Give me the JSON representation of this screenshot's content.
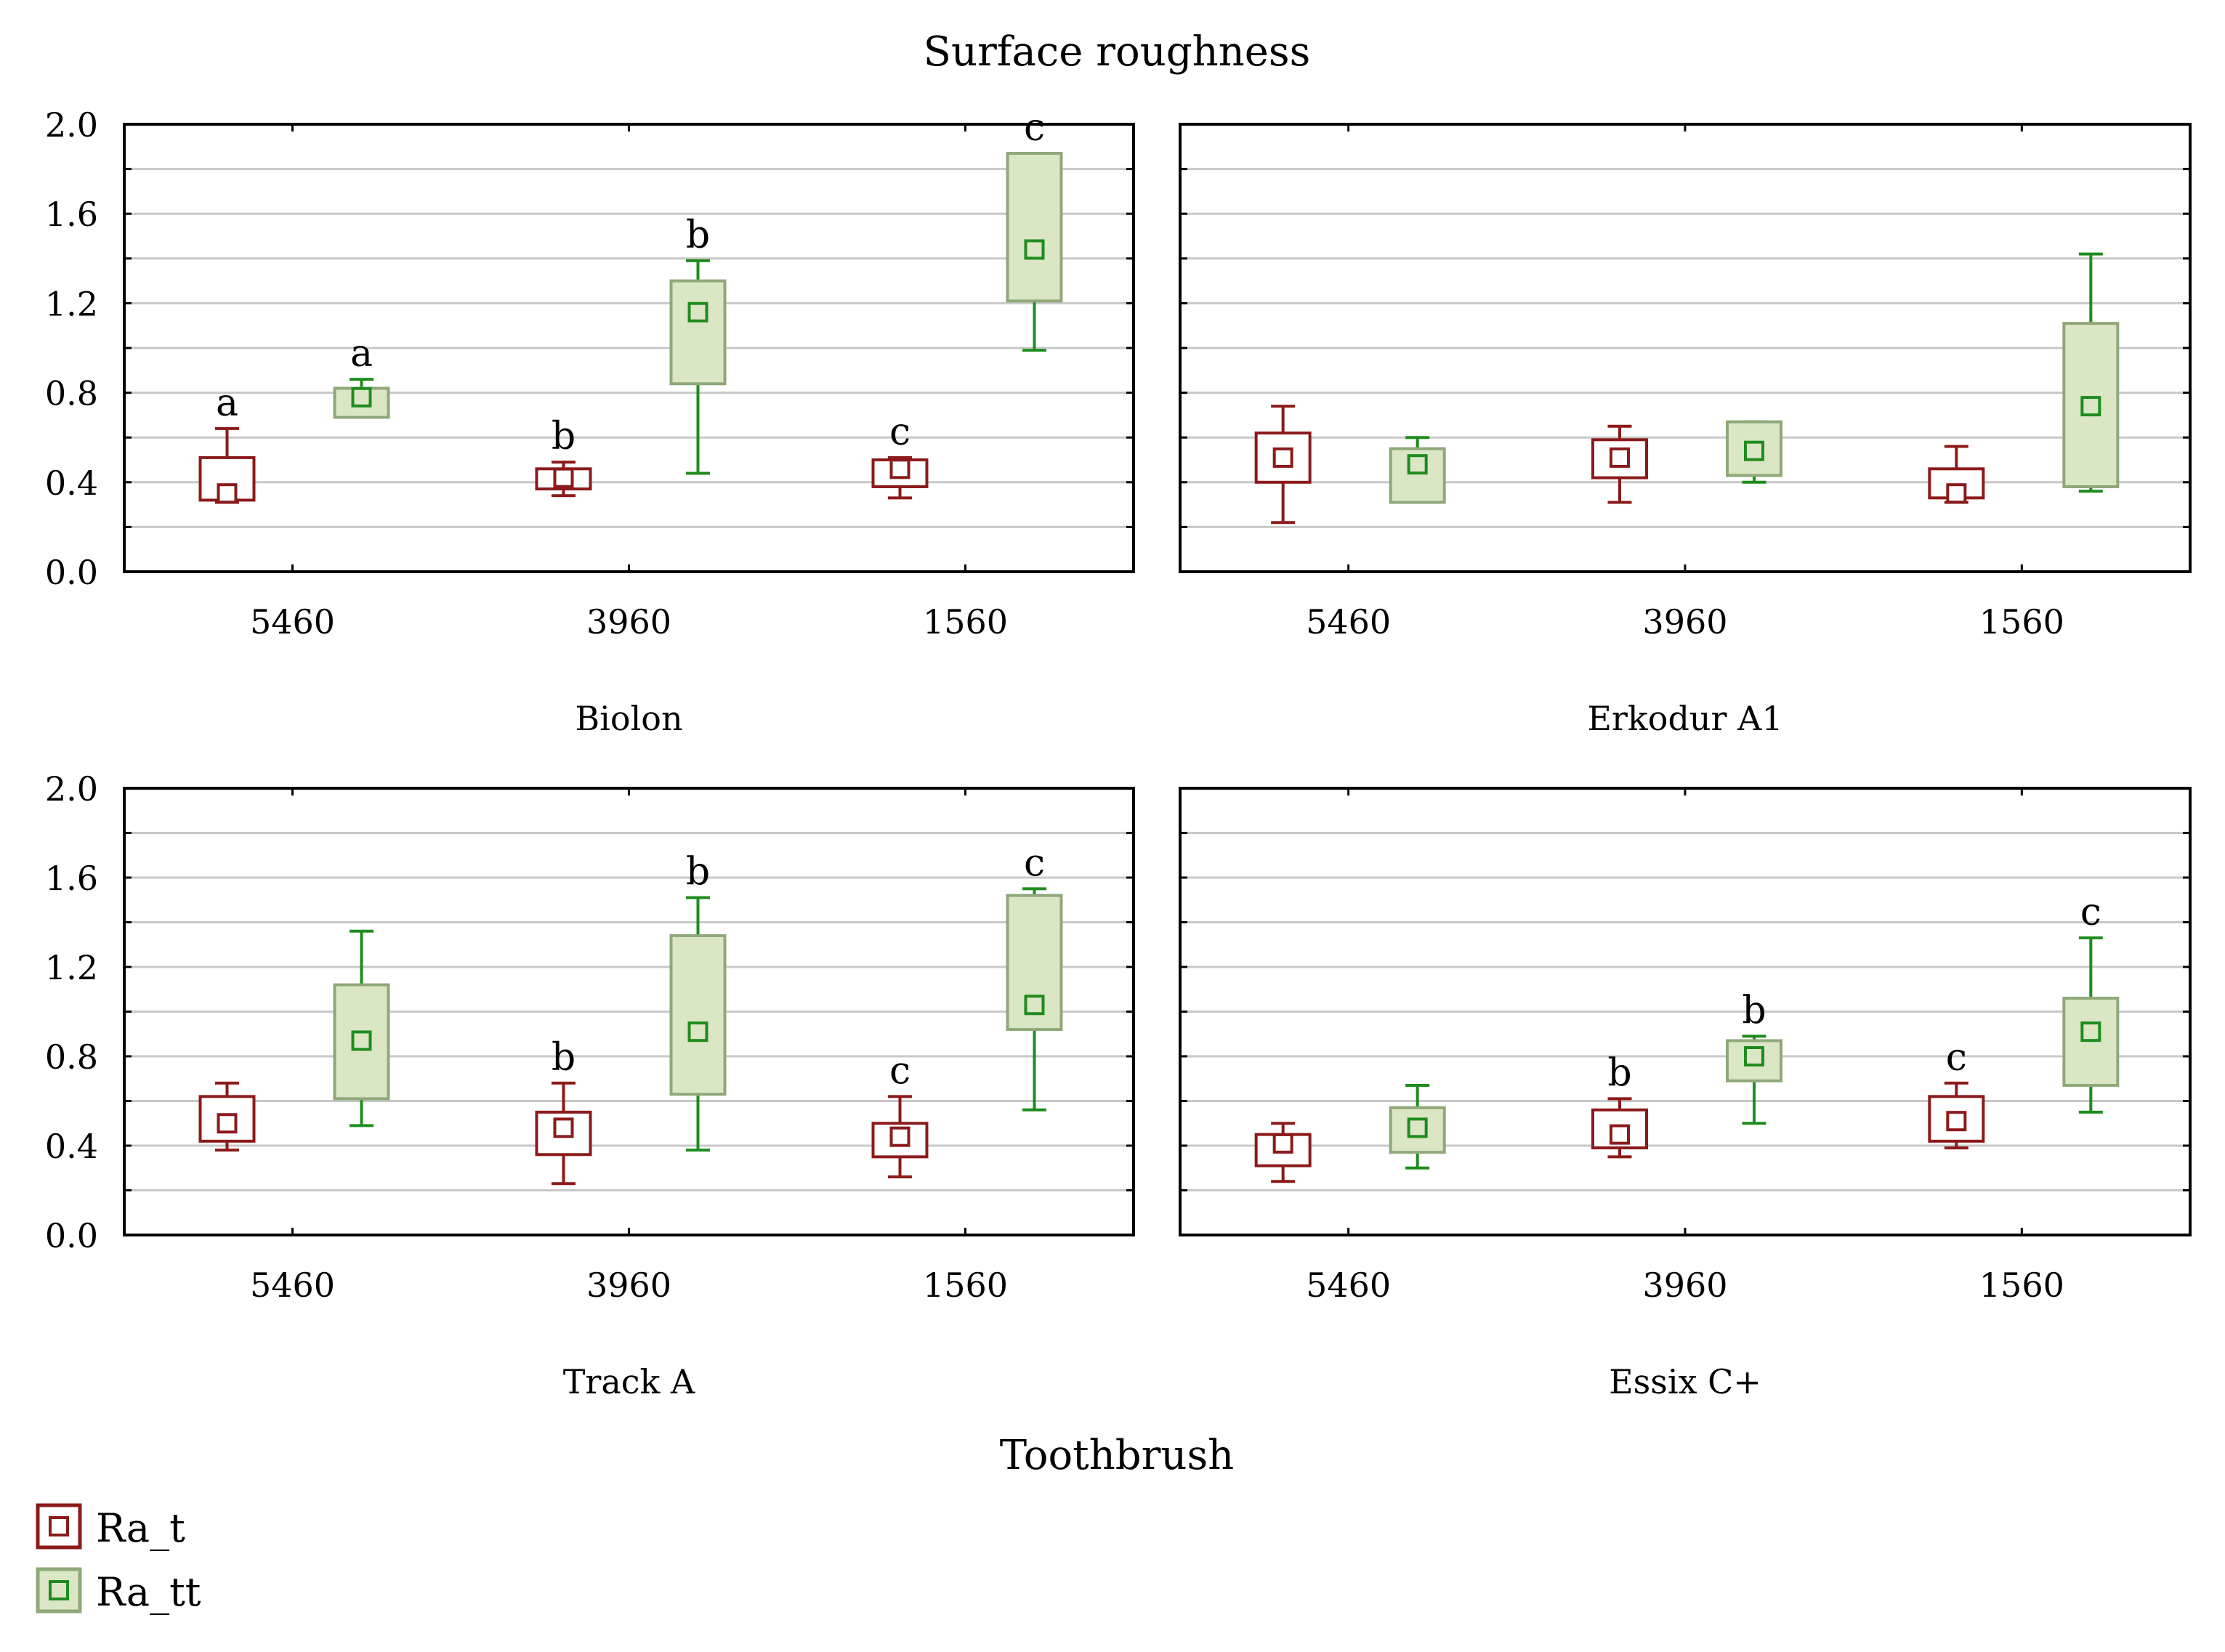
{
  "chart_data": {
    "type": "box",
    "title": "Surface roughness",
    "xlabel": "Toothbrush",
    "ylim": [
      0,
      2.0
    ],
    "yticks": [
      "0.0",
      "0.4",
      "0.8",
      "1.2",
      "1.6",
      "2.0"
    ],
    "categories": [
      "5460",
      "3960",
      "1560"
    ],
    "legend": [
      {
        "name": "Ra_t",
        "key": "t"
      },
      {
        "name": "Ra_tt",
        "key": "tt"
      }
    ],
    "colors": {
      "t_stroke": "#8b1a1a",
      "t_fill": "#ffffff",
      "tt_stroke": "#1e8c1e",
      "tt_box_stroke": "#8fa87a",
      "tt_fill": "#dbe6c4",
      "grid": "#c8c8c8"
    },
    "panels": [
      {
        "title": "Biolon",
        "groups": [
          {
            "category": "5460",
            "t": {
              "min": 0.31,
              "q1": 0.32,
              "median": 0.35,
              "q3": 0.51,
              "max": 0.64,
              "letter": "a"
            },
            "tt": {
              "min": 0.69,
              "q1": 0.69,
              "median": 0.78,
              "q3": 0.82,
              "max": 0.86,
              "letter": "a"
            }
          },
          {
            "category": "3960",
            "t": {
              "min": 0.34,
              "q1": 0.37,
              "median": 0.42,
              "q3": 0.46,
              "max": 0.49,
              "letter": "b"
            },
            "tt": {
              "min": 0.44,
              "q1": 0.84,
              "median": 1.16,
              "q3": 1.3,
              "max": 1.39,
              "letter": "b"
            }
          },
          {
            "category": "1560",
            "t": {
              "min": 0.33,
              "q1": 0.38,
              "median": 0.46,
              "q3": 0.5,
              "max": 0.51,
              "letter": "c"
            },
            "tt": {
              "min": 0.99,
              "q1": 1.21,
              "median": 1.44,
              "q3": 1.87,
              "max": 1.87,
              "letter": "c"
            }
          }
        ]
      },
      {
        "title": "Erkodur A1",
        "groups": [
          {
            "category": "5460",
            "t": {
              "min": 0.22,
              "q1": 0.4,
              "median": 0.51,
              "q3": 0.62,
              "max": 0.74,
              "letter": ""
            },
            "tt": {
              "min": 0.31,
              "q1": 0.31,
              "median": 0.48,
              "q3": 0.55,
              "max": 0.6,
              "letter": ""
            }
          },
          {
            "category": "3960",
            "t": {
              "min": 0.31,
              "q1": 0.42,
              "median": 0.51,
              "q3": 0.59,
              "max": 0.65,
              "letter": ""
            },
            "tt": {
              "min": 0.4,
              "q1": 0.43,
              "median": 0.54,
              "q3": 0.67,
              "max": 0.67,
              "letter": ""
            }
          },
          {
            "category": "1560",
            "t": {
              "min": 0.31,
              "q1": 0.33,
              "median": 0.35,
              "q3": 0.46,
              "max": 0.56,
              "letter": ""
            },
            "tt": {
              "min": 0.36,
              "q1": 0.38,
              "median": 0.74,
              "q3": 1.11,
              "max": 1.42,
              "letter": ""
            }
          }
        ]
      },
      {
        "title": "Track A",
        "groups": [
          {
            "category": "5460",
            "t": {
              "min": 0.38,
              "q1": 0.42,
              "median": 0.5,
              "q3": 0.62,
              "max": 0.68,
              "letter": ""
            },
            "tt": {
              "min": 0.49,
              "q1": 0.61,
              "median": 0.87,
              "q3": 1.12,
              "max": 1.36,
              "letter": ""
            }
          },
          {
            "category": "3960",
            "t": {
              "min": 0.23,
              "q1": 0.36,
              "median": 0.48,
              "q3": 0.55,
              "max": 0.68,
              "letter": "b"
            },
            "tt": {
              "min": 0.38,
              "q1": 0.63,
              "median": 0.91,
              "q3": 1.34,
              "max": 1.51,
              "letter": "b"
            }
          },
          {
            "category": "1560",
            "t": {
              "min": 0.26,
              "q1": 0.35,
              "median": 0.44,
              "q3": 0.5,
              "max": 0.62,
              "letter": "c"
            },
            "tt": {
              "min": 0.56,
              "q1": 0.92,
              "median": 1.03,
              "q3": 1.52,
              "max": 1.55,
              "letter": "c"
            }
          }
        ]
      },
      {
        "title": "Essix C+",
        "groups": [
          {
            "category": "5460",
            "t": {
              "min": 0.24,
              "q1": 0.31,
              "median": 0.41,
              "q3": 0.45,
              "max": 0.5,
              "letter": ""
            },
            "tt": {
              "min": 0.3,
              "q1": 0.37,
              "median": 0.48,
              "q3": 0.57,
              "max": 0.67,
              "letter": ""
            }
          },
          {
            "category": "3960",
            "t": {
              "min": 0.35,
              "q1": 0.39,
              "median": 0.45,
              "q3": 0.56,
              "max": 0.61,
              "letter": "b"
            },
            "tt": {
              "min": 0.5,
              "q1": 0.69,
              "median": 0.8,
              "q3": 0.87,
              "max": 0.89,
              "letter": "b"
            }
          },
          {
            "category": "1560",
            "t": {
              "min": 0.39,
              "q1": 0.42,
              "median": 0.51,
              "q3": 0.62,
              "max": 0.68,
              "letter": "c"
            },
            "tt": {
              "min": 0.55,
              "q1": 0.67,
              "median": 0.91,
              "q3": 1.06,
              "max": 1.33,
              "letter": "c"
            }
          }
        ]
      }
    ]
  }
}
